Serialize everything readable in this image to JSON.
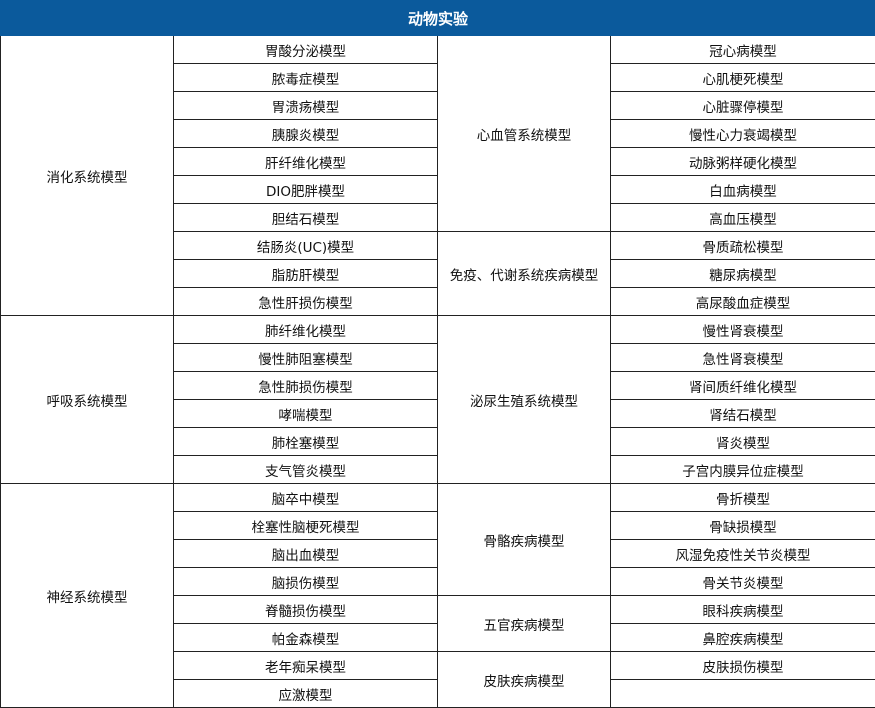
{
  "title": "动物实验",
  "header_color": "#0b5a9c",
  "col1_groups": [
    {
      "label": "消化系统模型",
      "rows": 10
    },
    {
      "label": "呼吸系统模型",
      "rows": 6
    },
    {
      "label": "神经系统模型",
      "rows": 8
    }
  ],
  "col2_items": [
    "胃酸分泌模型",
    "脓毒症模型",
    "胃溃疡模型",
    "胰腺炎模型",
    "肝纤维化模型",
    "DIO肥胖模型",
    "胆结石模型",
    "结肠炎(UC)模型",
    "脂肪肝模型",
    "急性肝损伤模型",
    "肺纤维化模型",
    "慢性肺阻塞模型",
    "急性肺损伤模型",
    "哮喘模型",
    "肺栓塞模型",
    "支气管炎模型",
    "脑卒中模型",
    "栓塞性脑梗死模型",
    "脑出血模型",
    "脑损伤模型",
    "脊髓损伤模型",
    "帕金森模型",
    "老年痴呆模型",
    "应激模型"
  ],
  "col3_groups": [
    {
      "label": "心血管系统模型",
      "rows": 7
    },
    {
      "label": "免疫、代谢系统疾病模型",
      "rows": 3
    },
    {
      "label": "泌尿生殖系统模型",
      "rows": 6
    },
    {
      "label": "骨骼疾病模型",
      "rows": 4
    },
    {
      "label": "五官疾病模型",
      "rows": 2
    },
    {
      "label": "皮肤疾病模型",
      "rows": 2
    }
  ],
  "col4_items": [
    "冠心病模型",
    "心肌梗死模型",
    "心脏骤停模型",
    "慢性心力衰竭模型",
    "动脉粥样硬化模型",
    "白血病模型",
    "高血压模型",
    "骨质疏松模型",
    "糖尿病模型",
    "高尿酸血症模型",
    "慢性肾衰模型",
    "急性肾衰模型",
    "肾间质纤维化模型",
    "肾结石模型",
    "肾炎模型",
    "子宫内膜异位症模型",
    "骨折模型",
    "骨缺损模型",
    "风湿免疫性关节炎模型",
    "骨关节炎模型",
    "眼科疾病模型",
    "鼻腔疾病模型",
    "皮肤损伤模型",
    ""
  ]
}
